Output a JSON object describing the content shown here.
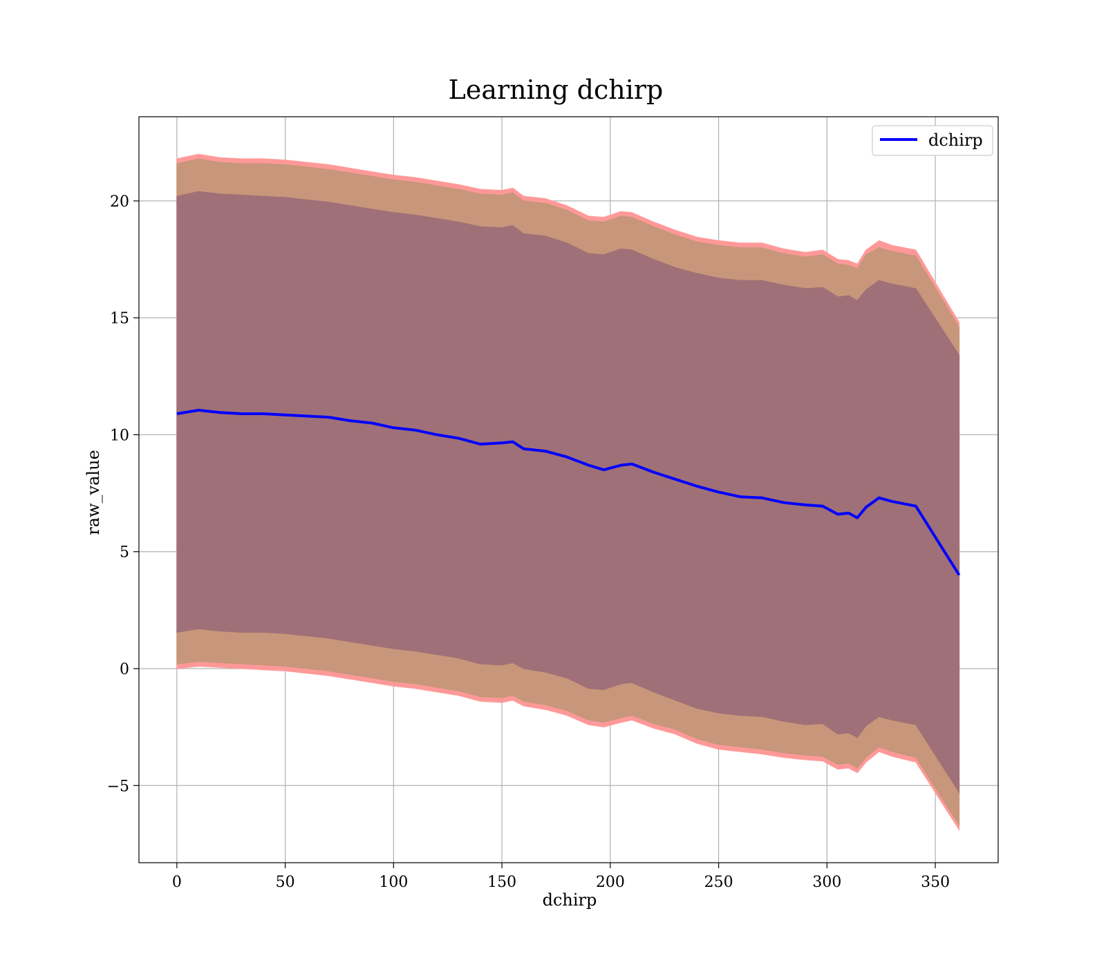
{
  "chart_data": {
    "type": "line",
    "title": "Learning dchirp",
    "xlabel": "dchirp",
    "ylabel": "raw_value",
    "xlim": [
      -17.5,
      379
    ],
    "ylim": [
      -8.3,
      23.6
    ],
    "xticks": [
      0,
      50,
      100,
      150,
      200,
      250,
      300,
      350
    ],
    "yticks": [
      -5,
      0,
      5,
      10,
      15,
      20
    ],
    "xtick_labels": [
      "0",
      "50",
      "100",
      "150",
      "200",
      "250",
      "300",
      "350"
    ],
    "ytick_labels": [
      "−5",
      "0",
      "5",
      "10",
      "15",
      "20"
    ],
    "grid": true,
    "legend": {
      "placement": "top-right",
      "entries": [
        "dchirp"
      ]
    },
    "colors": {
      "line": "#0000ff",
      "outer_band": "#ff9999",
      "mid_band": "#c8967a",
      "inner_band": "#a07078"
    },
    "series": [
      {
        "name": "dchirp",
        "x": [
          0,
          10,
          20,
          30,
          40,
          50,
          60,
          70,
          80,
          90,
          100,
          110,
          120,
          130,
          140,
          150,
          155,
          160,
          170,
          180,
          190,
          197,
          205,
          210,
          220,
          230,
          240,
          250,
          260,
          270,
          280,
          290,
          298,
          305,
          310,
          314,
          318,
          324,
          330,
          341,
          361
        ],
        "y": [
          10.9,
          11.05,
          10.95,
          10.9,
          10.9,
          10.85,
          10.8,
          10.75,
          10.6,
          10.5,
          10.3,
          10.2,
          10.0,
          9.85,
          9.6,
          9.65,
          9.7,
          9.4,
          9.3,
          9.05,
          8.7,
          8.5,
          8.7,
          8.75,
          8.4,
          8.1,
          7.8,
          7.55,
          7.35,
          7.3,
          7.1,
          7.0,
          6.95,
          6.6,
          6.65,
          6.45,
          6.9,
          7.3,
          7.15,
          6.95,
          4.0
        ]
      }
    ],
    "bands": [
      {
        "name": "outer",
        "x": [
          0,
          10,
          20,
          30,
          40,
          50,
          60,
          70,
          80,
          90,
          100,
          110,
          120,
          130,
          140,
          150,
          155,
          160,
          170,
          180,
          190,
          197,
          205,
          210,
          220,
          230,
          240,
          250,
          260,
          270,
          280,
          290,
          298,
          305,
          310,
          314,
          318,
          324,
          330,
          341,
          361
        ],
        "upper": [
          21.8,
          22.0,
          21.85,
          21.8,
          21.8,
          21.75,
          21.65,
          21.55,
          21.4,
          21.25,
          21.1,
          21.0,
          20.85,
          20.7,
          20.5,
          20.45,
          20.55,
          20.2,
          20.1,
          19.8,
          19.35,
          19.3,
          19.55,
          19.5,
          19.1,
          18.75,
          18.45,
          18.3,
          18.2,
          18.2,
          17.95,
          17.8,
          17.9,
          17.5,
          17.45,
          17.3,
          17.9,
          18.3,
          18.1,
          17.9,
          14.8
        ],
        "lower": [
          0.0,
          0.1,
          0.05,
          0.0,
          -0.05,
          -0.1,
          -0.2,
          -0.3,
          -0.45,
          -0.6,
          -0.75,
          -0.85,
          -1.0,
          -1.15,
          -1.4,
          -1.45,
          -1.35,
          -1.6,
          -1.75,
          -2.0,
          -2.4,
          -2.5,
          -2.3,
          -2.2,
          -2.55,
          -2.8,
          -3.2,
          -3.45,
          -3.55,
          -3.65,
          -3.8,
          -3.9,
          -3.95,
          -4.3,
          -4.25,
          -4.45,
          -4.0,
          -3.55,
          -3.75,
          -4.0,
          -6.9
        ]
      },
      {
        "name": "middle",
        "x": [
          0,
          10,
          20,
          30,
          40,
          50,
          60,
          70,
          80,
          90,
          100,
          110,
          120,
          130,
          140,
          150,
          155,
          160,
          170,
          180,
          190,
          197,
          205,
          210,
          220,
          230,
          240,
          250,
          260,
          270,
          280,
          290,
          298,
          305,
          310,
          314,
          318,
          324,
          330,
          341,
          361
        ],
        "upper": [
          21.6,
          21.8,
          21.65,
          21.6,
          21.6,
          21.55,
          21.45,
          21.35,
          21.2,
          21.05,
          20.9,
          20.8,
          20.65,
          20.5,
          20.3,
          20.25,
          20.35,
          20.0,
          19.9,
          19.6,
          19.15,
          19.1,
          19.35,
          19.3,
          18.9,
          18.55,
          18.25,
          18.1,
          18.0,
          18.0,
          17.75,
          17.6,
          17.7,
          17.3,
          17.25,
          17.1,
          17.7,
          18.0,
          17.85,
          17.65,
          14.6
        ],
        "lower": [
          0.2,
          0.3,
          0.25,
          0.2,
          0.15,
          0.1,
          0.0,
          -0.1,
          -0.25,
          -0.4,
          -0.55,
          -0.65,
          -0.8,
          -0.95,
          -1.2,
          -1.25,
          -1.15,
          -1.4,
          -1.55,
          -1.8,
          -2.2,
          -2.3,
          -2.1,
          -2.0,
          -2.35,
          -2.6,
          -3.0,
          -3.25,
          -3.35,
          -3.45,
          -3.6,
          -3.7,
          -3.75,
          -4.1,
          -4.05,
          -4.25,
          -3.8,
          -3.35,
          -3.55,
          -3.8,
          -6.7
        ]
      },
      {
        "name": "inner",
        "x": [
          0,
          10,
          20,
          30,
          40,
          50,
          60,
          70,
          80,
          90,
          100,
          110,
          120,
          130,
          140,
          150,
          155,
          160,
          170,
          180,
          190,
          197,
          205,
          210,
          220,
          230,
          240,
          250,
          260,
          270,
          280,
          290,
          298,
          305,
          310,
          314,
          318,
          324,
          330,
          341,
          361
        ],
        "upper": [
          20.2,
          20.4,
          20.3,
          20.25,
          20.2,
          20.15,
          20.05,
          19.95,
          19.8,
          19.65,
          19.5,
          19.4,
          19.25,
          19.1,
          18.9,
          18.85,
          18.95,
          18.6,
          18.5,
          18.2,
          17.75,
          17.7,
          17.95,
          17.9,
          17.5,
          17.15,
          16.9,
          16.7,
          16.6,
          16.6,
          16.4,
          16.25,
          16.3,
          15.9,
          15.95,
          15.75,
          16.2,
          16.6,
          16.45,
          16.25,
          13.4
        ],
        "lower": [
          1.55,
          1.7,
          1.6,
          1.55,
          1.55,
          1.5,
          1.4,
          1.3,
          1.15,
          1.0,
          0.85,
          0.75,
          0.6,
          0.45,
          0.2,
          0.15,
          0.25,
          0.0,
          -0.15,
          -0.4,
          -0.85,
          -0.9,
          -0.65,
          -0.6,
          -1.0,
          -1.35,
          -1.7,
          -1.9,
          -2.0,
          -2.05,
          -2.25,
          -2.4,
          -2.35,
          -2.8,
          -2.75,
          -2.95,
          -2.45,
          -2.05,
          -2.2,
          -2.4,
          -5.3
        ]
      }
    ]
  }
}
